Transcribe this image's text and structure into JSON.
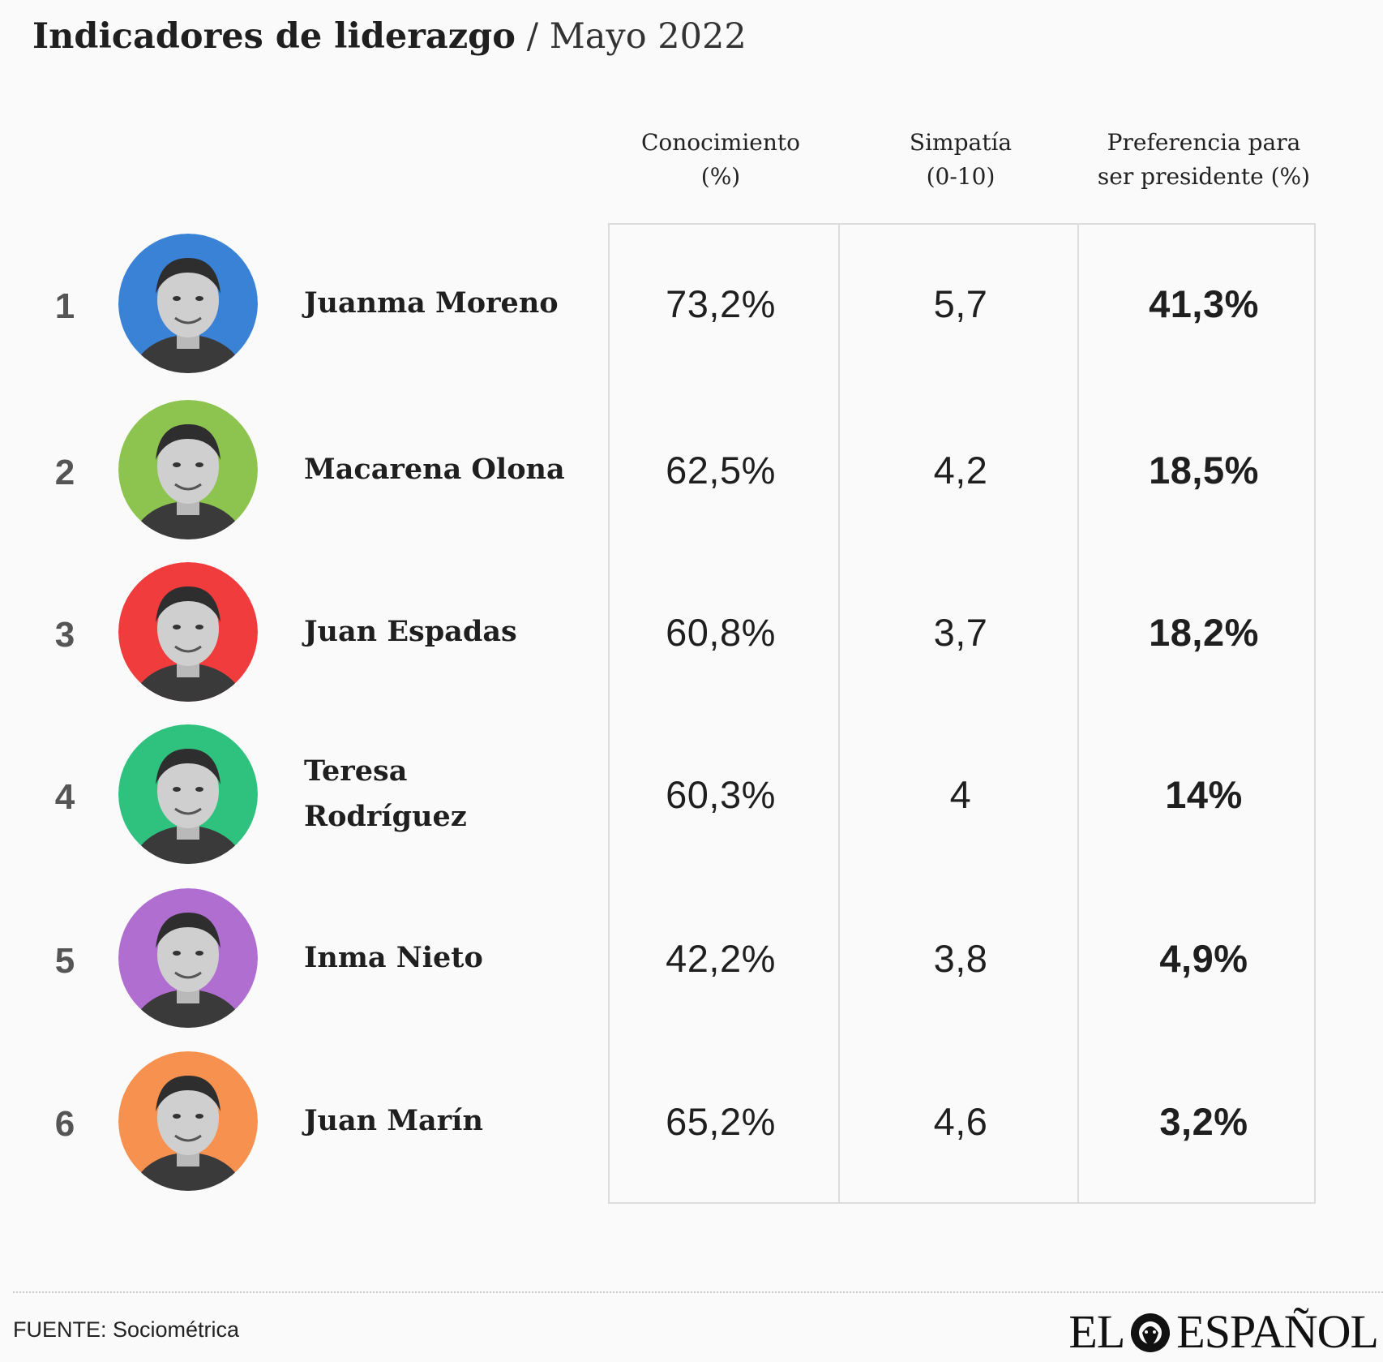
{
  "title": {
    "main": "Indicadores de liderazgo",
    "separator": " / ",
    "sub": "Mayo 2022"
  },
  "headers": {
    "conocimiento": [
      "Conocimiento",
      "(%)"
    ],
    "simpatia": [
      "Simpatía",
      "(0-10)"
    ],
    "preferencia": [
      "Preferencia para",
      "ser presidente (%)"
    ]
  },
  "chart_data": {
    "type": "table",
    "title": "Indicadores de liderazgo / Mayo 2022",
    "columns": [
      "Conocimiento (%)",
      "Simpatía (0-10)",
      "Preferencia para ser presidente (%)"
    ],
    "rows": [
      {
        "rank": "1",
        "name": "Juanma Moreno",
        "avatar_color": "#3a82d6",
        "conocimiento": "73,2%",
        "simpatia": "5,7",
        "preferencia": "41,3%"
      },
      {
        "rank": "2",
        "name": "Macarena Olona",
        "avatar_color": "#8cc44f",
        "conocimiento": "62,5%",
        "simpatia": "4,2",
        "preferencia": "18,5%"
      },
      {
        "rank": "3",
        "name": "Juan Espadas",
        "avatar_color": "#f03c3c",
        "conocimiento": "60,8%",
        "simpatia": "3,7",
        "preferencia": "18,2%"
      },
      {
        "rank": "4",
        "name": "Teresa Rodríguez",
        "avatar_color": "#2ec27e",
        "conocimiento": "60,3%",
        "simpatia": "4",
        "preferencia": "14%"
      },
      {
        "rank": "5",
        "name": "Inma Nieto",
        "avatar_color": "#b06ed1",
        "conocimiento": "42,2%",
        "simpatia": "3,8",
        "preferencia": "4,9%"
      },
      {
        "rank": "6",
        "name": "Juan Marín",
        "avatar_color": "#f7914f",
        "conocimiento": "65,2%",
        "simpatia": "4,6",
        "preferencia": "3,2%"
      }
    ]
  },
  "footer": {
    "source": "FUENTE: Sociométrica",
    "logo_left": "EL",
    "logo_right": "ESPAÑOL"
  }
}
